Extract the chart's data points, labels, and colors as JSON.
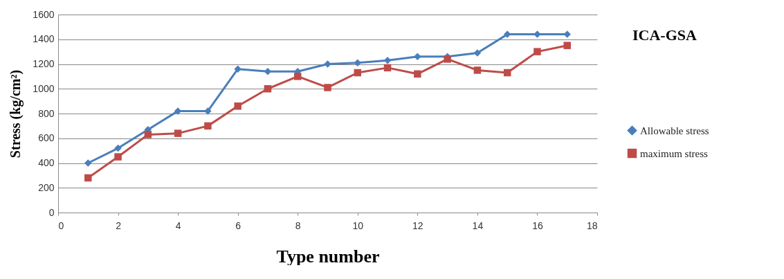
{
  "chart_data": {
    "type": "line",
    "title": "ICA-GSA",
    "xlabel": "Type number",
    "ylabel": "Stress (kg/cm²)",
    "x": [
      1,
      2,
      3,
      4,
      5,
      6,
      7,
      8,
      9,
      10,
      11,
      12,
      13,
      14,
      15,
      16,
      17
    ],
    "series": [
      {
        "name": "Allowable stress",
        "color": "#4a7ebb",
        "marker": "diamond",
        "values": [
          400,
          520,
          670,
          820,
          820,
          1160,
          1140,
          1140,
          1200,
          1210,
          1230,
          1260,
          1260,
          1290,
          1440,
          1440,
          1440
        ]
      },
      {
        "name": "maximum stress",
        "color": "#be4b48",
        "marker": "square",
        "values": [
          280,
          450,
          630,
          640,
          700,
          860,
          1000,
          1100,
          1010,
          1130,
          1170,
          1120,
          1240,
          1150,
          1130,
          1300,
          1350
        ]
      }
    ],
    "xlim": [
      0,
      18
    ],
    "xticks": [
      0,
      2,
      4,
      6,
      8,
      10,
      12,
      14,
      16,
      18
    ],
    "ylim": [
      0,
      1600
    ],
    "yticks": [
      0,
      200,
      400,
      600,
      800,
      1000,
      1200,
      1400,
      1600
    ],
    "grid": "y",
    "legend": "right"
  }
}
